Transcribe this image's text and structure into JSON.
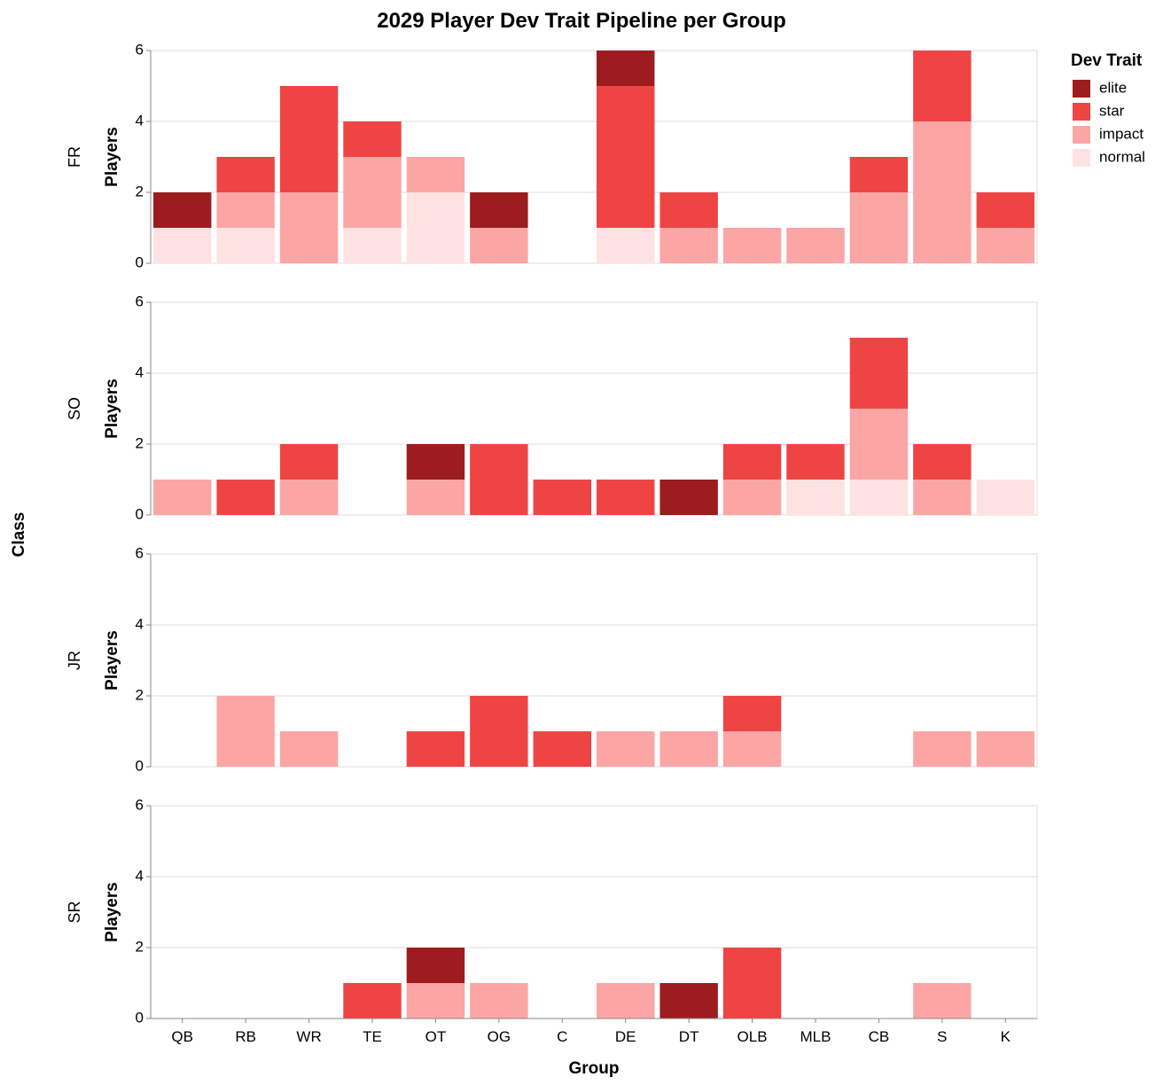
{
  "chart_data": {
    "type": "bar",
    "stacked": true,
    "title": "2029 Player Dev Trait Pipeline per Group",
    "xlabel": "Group",
    "ylabel": "Players",
    "row_title": "Class",
    "ylim": [
      0,
      6
    ],
    "yticks": [
      0,
      2,
      4,
      6
    ],
    "grid": true,
    "legend_position": "top-right",
    "legend_title": "Dev Trait",
    "categories": [
      "QB",
      "RB",
      "WR",
      "TE",
      "OT",
      "OG",
      "C",
      "DE",
      "DT",
      "OLB",
      "MLB",
      "CB",
      "S",
      "K"
    ],
    "traits": [
      {
        "name": "elite",
        "color": "#9c1c1f"
      },
      {
        "name": "star",
        "color": "#ef4444"
      },
      {
        "name": "impact",
        "color": "#fca5a5"
      },
      {
        "name": "normal",
        "color": "#fee2e2"
      }
    ],
    "stack_order": [
      "normal",
      "impact",
      "star",
      "elite"
    ],
    "facets": [
      {
        "label": "FR",
        "series": {
          "elite": [
            1,
            0,
            0,
            0,
            0,
            1,
            0,
            1,
            0,
            0,
            0,
            0,
            0,
            0
          ],
          "star": [
            0,
            1,
            3,
            1,
            0,
            0,
            0,
            4,
            1,
            0,
            0,
            1,
            2,
            1
          ],
          "impact": [
            0,
            1,
            2,
            2,
            1,
            1,
            0,
            0,
            1,
            1,
            1,
            2,
            4,
            1
          ],
          "normal": [
            1,
            1,
            0,
            1,
            2,
            0,
            0,
            1,
            0,
            0,
            0,
            0,
            0,
            0
          ]
        }
      },
      {
        "label": "SO",
        "series": {
          "elite": [
            0,
            0,
            0,
            0,
            1,
            0,
            0,
            0,
            1,
            0,
            0,
            0,
            0,
            0
          ],
          "star": [
            0,
            1,
            1,
            0,
            0,
            2,
            1,
            1,
            0,
            1,
            1,
            2,
            1,
            0
          ],
          "impact": [
            1,
            0,
            1,
            0,
            1,
            0,
            0,
            0,
            0,
            1,
            0,
            2,
            1,
            0
          ],
          "normal": [
            0,
            0,
            0,
            0,
            0,
            0,
            0,
            0,
            0,
            0,
            1,
            1,
            0,
            1
          ]
        }
      },
      {
        "label": "JR",
        "series": {
          "elite": [
            0,
            0,
            0,
            0,
            0,
            0,
            0,
            0,
            0,
            0,
            0,
            0,
            0,
            0
          ],
          "star": [
            0,
            0,
            0,
            0,
            1,
            2,
            1,
            0,
            0,
            1,
            0,
            0,
            0,
            0
          ],
          "impact": [
            0,
            2,
            1,
            0,
            0,
            0,
            0,
            1,
            1,
            1,
            0,
            0,
            1,
            1
          ],
          "normal": [
            0,
            0,
            0,
            0,
            0,
            0,
            0,
            0,
            0,
            0,
            0,
            0,
            0,
            0
          ]
        }
      },
      {
        "label": "SR",
        "series": {
          "elite": [
            0,
            0,
            0,
            0,
            1,
            0,
            0,
            0,
            1,
            0,
            0,
            0,
            0,
            0
          ],
          "star": [
            0,
            0,
            0,
            1,
            0,
            0,
            0,
            0,
            0,
            2,
            0,
            0,
            0,
            0
          ],
          "impact": [
            0,
            0,
            0,
            0,
            1,
            1,
            0,
            1,
            0,
            0,
            0,
            0,
            1,
            0
          ],
          "normal": [
            0,
            0,
            0,
            0,
            0,
            0,
            0,
            0,
            0,
            0,
            0,
            0,
            0,
            0
          ]
        }
      }
    ]
  }
}
